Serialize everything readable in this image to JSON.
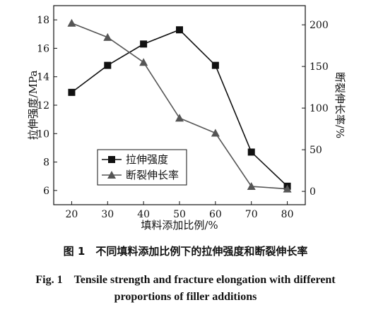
{
  "chart_data": {
    "type": "line",
    "x": [
      20,
      30,
      40,
      50,
      60,
      70,
      80
    ],
    "xlabel": "填料添加比例/%",
    "ylabel_left": "拉伸强度/MPa",
    "ylabel_right": "断裂伸长率/%",
    "xlim": [
      15,
      85
    ],
    "ylim_left": [
      5,
      19
    ],
    "ylim_right": [
      -16,
      223
    ],
    "xticks": [
      20,
      30,
      40,
      50,
      60,
      70,
      80
    ],
    "yticks_left": [
      6,
      8,
      10,
      12,
      14,
      16,
      18
    ],
    "yticks_right": [
      0,
      50,
      100,
      150,
      200
    ],
    "grid": false,
    "legend_position": "lower-left",
    "series": [
      {
        "name": "拉伸强度",
        "axis": "left",
        "marker": "square",
        "color": "#111111",
        "values": [
          12.9,
          14.8,
          16.3,
          17.3,
          14.8,
          8.7,
          6.3
        ]
      },
      {
        "name": "断裂伸长率",
        "axis": "right",
        "marker": "triangle",
        "color": "#555555",
        "values": [
          202,
          185,
          155,
          88,
          70,
          6,
          3
        ]
      }
    ]
  },
  "caption": {
    "cn": "图 1　不同填料添加比例下的拉伸强度和断裂伸长率",
    "en_line1": "Fig. 1　Tensile strength and fracture elongation with different",
    "en_line2": "proportions of filler additions"
  }
}
